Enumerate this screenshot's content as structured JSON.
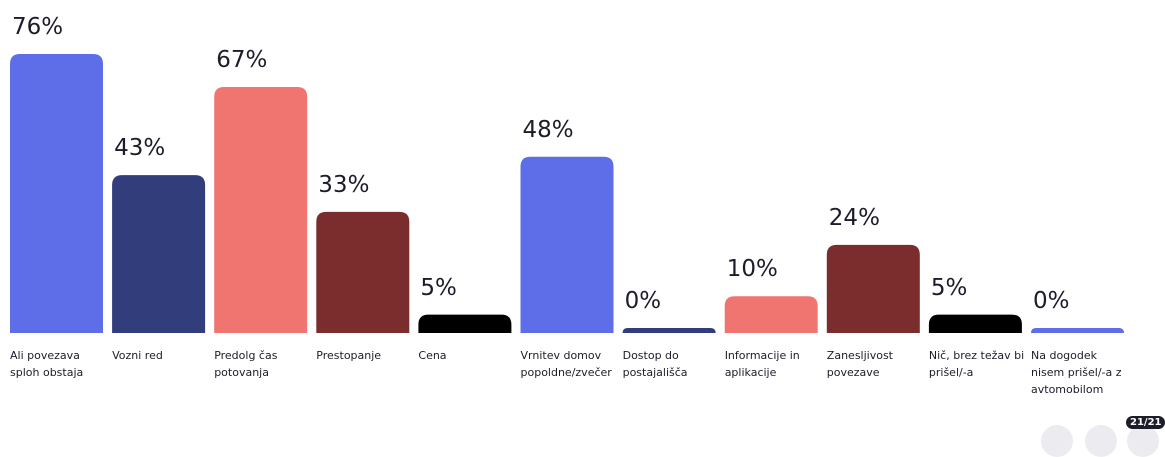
{
  "chart_data": {
    "type": "bar",
    "categories": [
      "Ali povezava sploh obstaja",
      "Vozni red",
      "Predolg čas potovanja",
      "Prestopanje",
      "Cena",
      "Vrnitev domov popoldne/zvečer",
      "Dostop do postajališča",
      "Informacije in aplikacije",
      "Zanesljivost povezave",
      "Nič, brez težav bi prišel/-a",
      "Na dogodek nisem prišel/-a z avtomobilom"
    ],
    "values": [
      76,
      43,
      67,
      33,
      5,
      48,
      0,
      10,
      24,
      5,
      0
    ],
    "value_labels": [
      "76%",
      "43%",
      "67%",
      "33%",
      "5%",
      "48%",
      "0%",
      "10%",
      "24%",
      "5%",
      "0%"
    ],
    "colors": [
      "#5d6ee8",
      "#323d7c",
      "#f07571",
      "#7b2c2c",
      "#000000",
      "#5d6ee8",
      "#323d7c",
      "#f07571",
      "#7b2c2c",
      "#000000",
      "#5d6ee8"
    ]
  },
  "badge": "21/21"
}
